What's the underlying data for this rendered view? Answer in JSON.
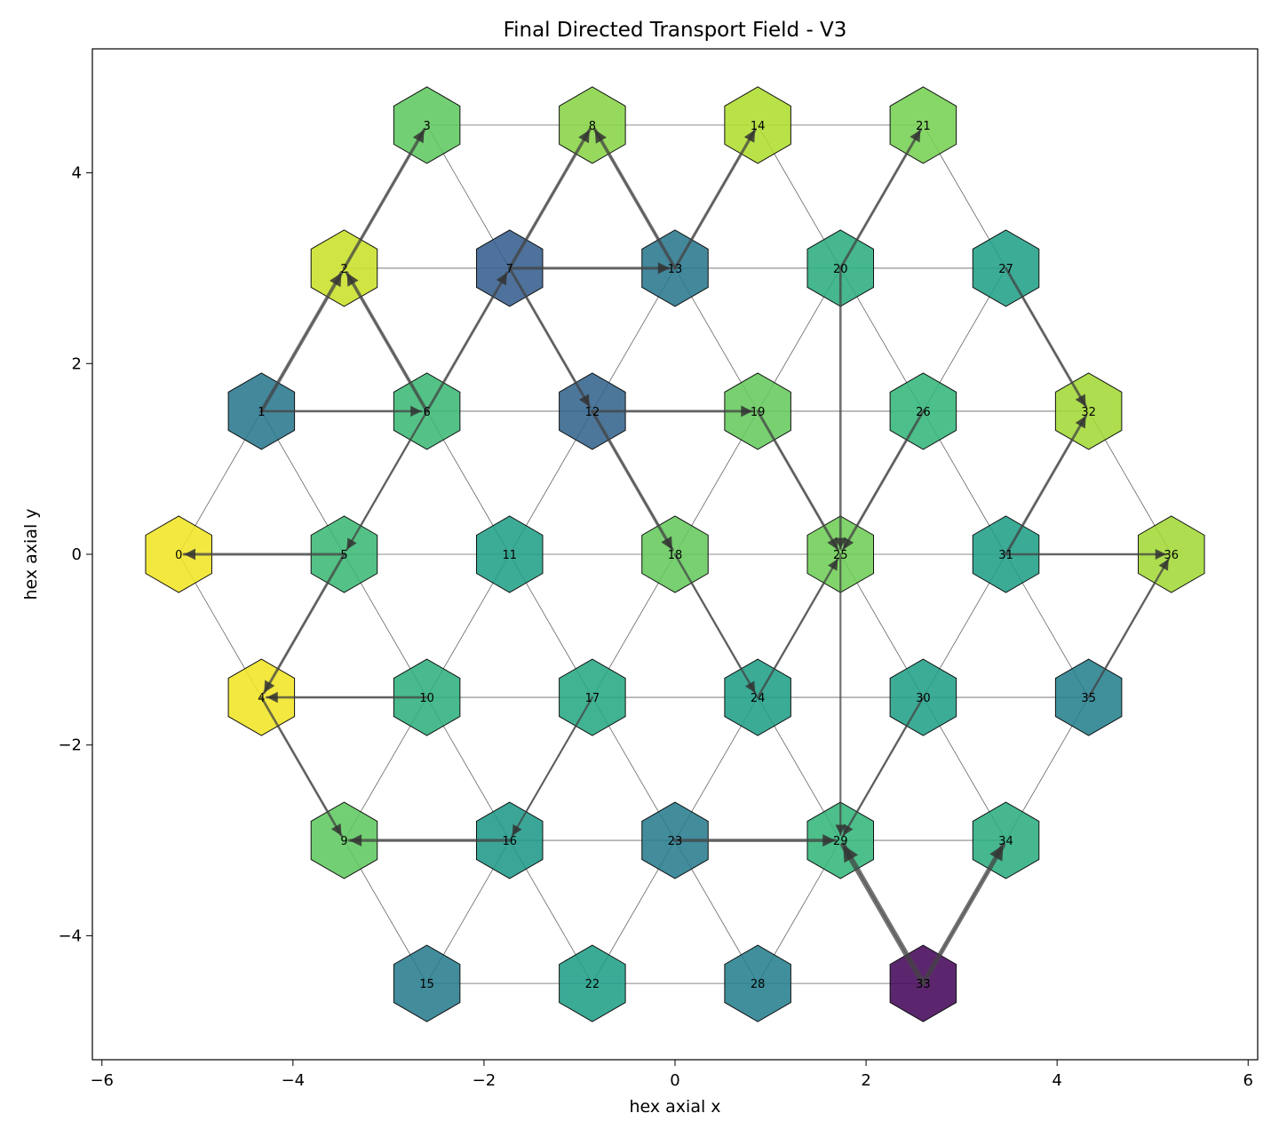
{
  "chart_data": {
    "type": "network",
    "title": "Final Directed Transport Field - V3",
    "xlabel": "hex axial x",
    "ylabel": "hex axial y",
    "xlim": [
      -6.1,
      6.1
    ],
    "ylim": [
      -5.3,
      5.3
    ],
    "xticks": [
      -6,
      -4,
      -2,
      0,
      2,
      4,
      6
    ],
    "yticks": [
      -4,
      -2,
      0,
      2,
      4
    ],
    "grid": false,
    "colormap": "viridis",
    "nodes": [
      {
        "id": 0,
        "x": -5.196,
        "y": 0.0,
        "value": 0.98
      },
      {
        "id": 1,
        "x": -4.33,
        "y": 1.5,
        "value": 0.4
      },
      {
        "id": 2,
        "x": -3.464,
        "y": 3.0,
        "value": 0.92
      },
      {
        "id": 3,
        "x": -2.598,
        "y": 4.5,
        "value": 0.75
      },
      {
        "id": 4,
        "x": -4.33,
        "y": -1.5,
        "value": 0.98
      },
      {
        "id": 5,
        "x": -3.464,
        "y": 0.0,
        "value": 0.68
      },
      {
        "id": 6,
        "x": -2.598,
        "y": 1.5,
        "value": 0.68
      },
      {
        "id": 7,
        "x": -1.732,
        "y": 3.0,
        "value": 0.3
      },
      {
        "id": 8,
        "x": -0.866,
        "y": 4.5,
        "value": 0.82
      },
      {
        "id": 9,
        "x": -3.464,
        "y": -3.0,
        "value": 0.75
      },
      {
        "id": 10,
        "x": -2.598,
        "y": -1.5,
        "value": 0.64
      },
      {
        "id": 11,
        "x": -1.732,
        "y": 0.0,
        "value": 0.57
      },
      {
        "id": 12,
        "x": -0.866,
        "y": 1.5,
        "value": 0.32
      },
      {
        "id": 13,
        "x": 0.0,
        "y": 3.0,
        "value": 0.4
      },
      {
        "id": 14,
        "x": 0.866,
        "y": 4.5,
        "value": 0.88
      },
      {
        "id": 15,
        "x": -2.598,
        "y": -4.5,
        "value": 0.42
      },
      {
        "id": 16,
        "x": -1.732,
        "y": -3.0,
        "value": 0.54
      },
      {
        "id": 17,
        "x": -0.866,
        "y": -1.5,
        "value": 0.6
      },
      {
        "id": 18,
        "x": 0.0,
        "y": 0.0,
        "value": 0.76
      },
      {
        "id": 19,
        "x": 0.866,
        "y": 1.5,
        "value": 0.76
      },
      {
        "id": 20,
        "x": 1.732,
        "y": 3.0,
        "value": 0.62
      },
      {
        "id": 21,
        "x": 2.598,
        "y": 4.5,
        "value": 0.79
      },
      {
        "id": 22,
        "x": -0.866,
        "y": -4.5,
        "value": 0.56
      },
      {
        "id": 23,
        "x": 0.0,
        "y": -3.0,
        "value": 0.42
      },
      {
        "id": 24,
        "x": 0.866,
        "y": -1.5,
        "value": 0.56
      },
      {
        "id": 25,
        "x": 1.732,
        "y": 0.0,
        "value": 0.78
      },
      {
        "id": 26,
        "x": 2.598,
        "y": 1.5,
        "value": 0.66
      },
      {
        "id": 27,
        "x": 3.464,
        "y": 3.0,
        "value": 0.57
      },
      {
        "id": 28,
        "x": 0.866,
        "y": -4.5,
        "value": 0.43
      },
      {
        "id": 29,
        "x": 1.732,
        "y": -3.0,
        "value": 0.66
      },
      {
        "id": 30,
        "x": 2.598,
        "y": -1.5,
        "value": 0.57
      },
      {
        "id": 31,
        "x": 3.464,
        "y": 0.0,
        "value": 0.56
      },
      {
        "id": 32,
        "x": 4.33,
        "y": 1.5,
        "value": 0.86
      },
      {
        "id": 33,
        "x": 2.598,
        "y": -4.5,
        "value": 0.02
      },
      {
        "id": 34,
        "x": 3.464,
        "y": -3.0,
        "value": 0.62
      },
      {
        "id": 35,
        "x": 4.33,
        "y": -1.5,
        "value": 0.44
      },
      {
        "id": 36,
        "x": 5.196,
        "y": 0.0,
        "value": 0.86
      }
    ],
    "edges": [
      [
        0,
        1
      ],
      [
        0,
        4
      ],
      [
        0,
        5
      ],
      [
        1,
        2
      ],
      [
        1,
        5
      ],
      [
        1,
        6
      ],
      [
        2,
        3
      ],
      [
        2,
        6
      ],
      [
        2,
        7
      ],
      [
        3,
        7
      ],
      [
        3,
        8
      ],
      [
        4,
        5
      ],
      [
        4,
        9
      ],
      [
        4,
        10
      ],
      [
        5,
        6
      ],
      [
        5,
        10
      ],
      [
        5,
        11
      ],
      [
        6,
        7
      ],
      [
        6,
        11
      ],
      [
        6,
        12
      ],
      [
        7,
        8
      ],
      [
        7,
        12
      ],
      [
        7,
        13
      ],
      [
        8,
        13
      ],
      [
        8,
        14
      ],
      [
        9,
        10
      ],
      [
        9,
        15
      ],
      [
        9,
        16
      ],
      [
        10,
        11
      ],
      [
        10,
        16
      ],
      [
        10,
        17
      ],
      [
        11,
        12
      ],
      [
        11,
        17
      ],
      [
        11,
        18
      ],
      [
        12,
        13
      ],
      [
        12,
        18
      ],
      [
        12,
        19
      ],
      [
        13,
        14
      ],
      [
        13,
        19
      ],
      [
        13,
        20
      ],
      [
        14,
        20
      ],
      [
        14,
        21
      ],
      [
        15,
        16
      ],
      [
        15,
        22
      ],
      [
        16,
        17
      ],
      [
        16,
        22
      ],
      [
        16,
        23
      ],
      [
        17,
        18
      ],
      [
        17,
        23
      ],
      [
        17,
        24
      ],
      [
        18,
        19
      ],
      [
        18,
        24
      ],
      [
        18,
        25
      ],
      [
        19,
        20
      ],
      [
        19,
        25
      ],
      [
        19,
        26
      ],
      [
        20,
        21
      ],
      [
        20,
        26
      ],
      [
        20,
        27
      ],
      [
        21,
        27
      ],
      [
        22,
        23
      ],
      [
        22,
        28
      ],
      [
        23,
        24
      ],
      [
        23,
        28
      ],
      [
        23,
        29
      ],
      [
        24,
        25
      ],
      [
        24,
        29
      ],
      [
        24,
        30
      ],
      [
        25,
        26
      ],
      [
        25,
        30
      ],
      [
        25,
        31
      ],
      [
        26,
        27
      ],
      [
        26,
        31
      ],
      [
        26,
        32
      ],
      [
        27,
        32
      ],
      [
        28,
        29
      ],
      [
        28,
        33
      ],
      [
        29,
        30
      ],
      [
        29,
        33
      ],
      [
        29,
        34
      ],
      [
        30,
        31
      ],
      [
        30,
        34
      ],
      [
        30,
        35
      ],
      [
        31,
        32
      ],
      [
        31,
        35
      ],
      [
        31,
        36
      ],
      [
        32,
        36
      ],
      [
        33,
        34
      ],
      [
        34,
        35
      ],
      [
        35,
        36
      ]
    ],
    "flows": [
      {
        "from": 33,
        "to": 29,
        "strength": 1.0
      },
      {
        "from": 33,
        "to": 34,
        "strength": 0.8
      },
      {
        "from": 23,
        "to": 29,
        "strength": 0.5
      },
      {
        "from": 16,
        "to": 9,
        "strength": 0.45
      },
      {
        "from": 1,
        "to": 2,
        "strength": 0.55
      },
      {
        "from": 6,
        "to": 2,
        "strength": 0.5
      },
      {
        "from": 2,
        "to": 3,
        "strength": 0.45
      },
      {
        "from": 7,
        "to": 8,
        "strength": 0.45
      },
      {
        "from": 13,
        "to": 8,
        "strength": 0.5
      },
      {
        "from": 13,
        "to": 14,
        "strength": 0.4
      },
      {
        "from": 7,
        "to": 13,
        "strength": 0.4
      },
      {
        "from": 6,
        "to": 7,
        "strength": 0.35
      },
      {
        "from": 7,
        "to": 12,
        "strength": 0.35
      },
      {
        "from": 12,
        "to": 18,
        "strength": 0.45
      },
      {
        "from": 12,
        "to": 19,
        "strength": 0.35
      },
      {
        "from": 19,
        "to": 25,
        "strength": 0.35
      },
      {
        "from": 26,
        "to": 25,
        "strength": 0.35
      },
      {
        "from": 20,
        "to": 25,
        "strength": 0.3
      },
      {
        "from": 20,
        "to": 21,
        "strength": 0.35
      },
      {
        "from": 27,
        "to": 32,
        "strength": 0.35
      },
      {
        "from": 31,
        "to": 32,
        "strength": 0.35
      },
      {
        "from": 5,
        "to": 0,
        "strength": 0.35
      },
      {
        "from": 1,
        "to": 6,
        "strength": 0.3
      },
      {
        "from": 6,
        "to": 5,
        "strength": 0.25
      },
      {
        "from": 5,
        "to": 4,
        "strength": 0.35
      },
      {
        "from": 10,
        "to": 4,
        "strength": 0.3
      },
      {
        "from": 4,
        "to": 9,
        "strength": 0.3
      },
      {
        "from": 18,
        "to": 24,
        "strength": 0.25
      },
      {
        "from": 24,
        "to": 25,
        "strength": 0.25
      },
      {
        "from": 30,
        "to": 29,
        "strength": 0.25
      },
      {
        "from": 31,
        "to": 36,
        "strength": 0.25
      },
      {
        "from": 35,
        "to": 36,
        "strength": 0.25
      },
      {
        "from": 17,
        "to": 16,
        "strength": 0.2
      },
      {
        "from": 25,
        "to": 29,
        "strength": 0.2
      }
    ]
  }
}
